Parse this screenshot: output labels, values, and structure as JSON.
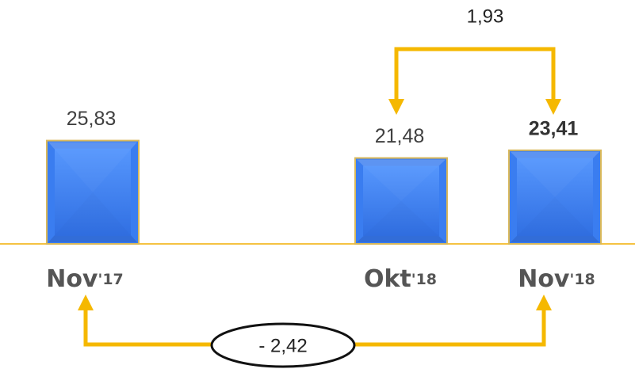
{
  "chart_data": {
    "type": "bar",
    "categories": [
      "Nov'17",
      "Okt'18",
      "Nov'18"
    ],
    "values": [
      25.83,
      21.48,
      23.41
    ],
    "value_labels": [
      "25,83",
      "21,48",
      "23,41"
    ],
    "color": "#3a7df0",
    "annotations": [
      "1,93",
      "- 2,42"
    ]
  }
}
